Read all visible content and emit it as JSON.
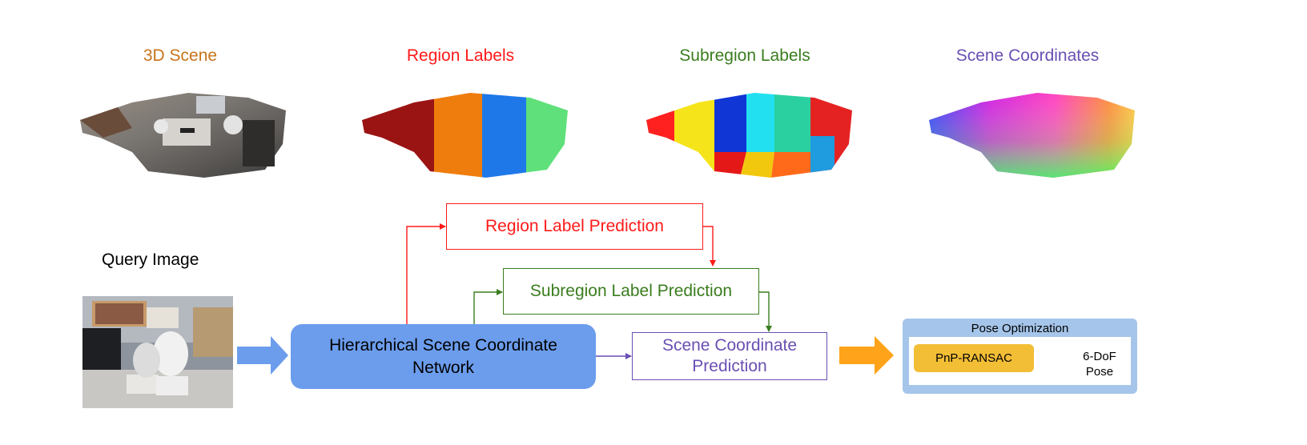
{
  "headers": {
    "scene": "3D Scene",
    "region_labels": "Region Labels",
    "subregion_labels": "Subregion Labels",
    "scene_coordinates": "Scene Coordinates"
  },
  "query_label": "Query Image",
  "boxes": {
    "network_line1": "Hierarchical Scene Coordinate",
    "network_line2": "Network",
    "region_prediction": "Region Label Prediction",
    "subregion_prediction": "Subregion Label Prediction",
    "coord_line1": "Scene Coordinate",
    "coord_line2": "Prediction"
  },
  "pose": {
    "title": "Pose Optimization",
    "pnp": "PnP-RANSAC",
    "out_line1": "6-DoF",
    "out_line2": "Pose"
  },
  "colors": {
    "scene": "#c8741a",
    "region": "#ff1a1a",
    "subregion": "#3a7d1e",
    "coordinates": "#6a4fb3",
    "network": "#6c9ded",
    "pose_panel": "#a6c5ea",
    "pnp": "#f2be36",
    "arrow_blue": "#6c9ded",
    "arrow_orange": "#ffa31a",
    "arrow_small": "#3f73d6"
  }
}
